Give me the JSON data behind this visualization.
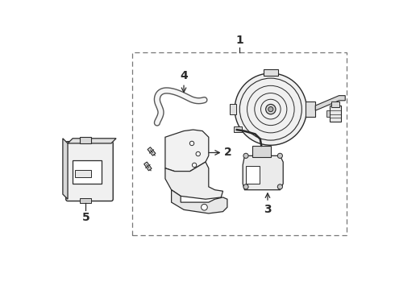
{
  "bg_color": "#ffffff",
  "line_color": "#2a2a2a",
  "fig_width": 4.9,
  "fig_height": 3.6,
  "dpi": 100,
  "label1": "1",
  "label2": "2",
  "label3": "3",
  "label4": "4",
  "label5": "5",
  "font_size_labels": 10
}
